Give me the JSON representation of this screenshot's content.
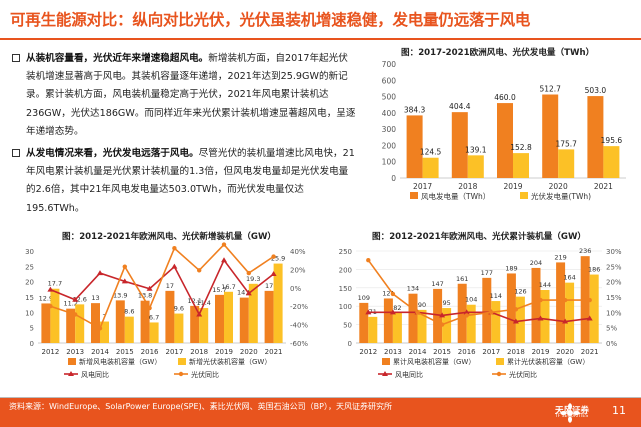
{
  "slide": {
    "title": "可再生能源对比：纵向对比光伏，光伏虽装机增速稳健，发电量仍远落于风电",
    "para1_head": "从装机容量看，光伏近年来增速稳超风电。",
    "para1_body": "新增装机方面，自2017年起光伏装机增速显著高于风电。其装机容量逐年递增，2021年达到25.9GW的新记录。累计装机方面，风电装机量稳定高于光伏，2021年风电累计装机达236GW，光伏达186GW。而同样近年来光伏累计装机增速显著超风电，呈逐年递增态势。",
    "para2_head": "从发电情况来看，光伏发电远落于风电。",
    "para2_body": "尽管光伏的装机量增速比风电快，21年风电累计装机量是光伏累计装机量的1.3倍，但风电发电量却是光伏发电量的2.6倍，其中21年风电发电量达503.0TWh，而光伏发电量仅达195.6TWh。",
    "source": "资料来源：WindEurope、SolarPower Europe(SPE)、素比光伏网、英国石油公司（BP），天风证券研究所",
    "logo_text": "天风证券",
    "logo_sub": "TF SECURITIES",
    "page_number": "11",
    "colors": {
      "accent": "#e8541e",
      "wind": "#f08020",
      "solar": "#fcc126",
      "wind_line": "#c8262b"
    }
  },
  "chart_data": [
    {
      "type": "bar",
      "title": "图：2017-2021欧洲风电、光伏发电量（TWh）",
      "categories": [
        "2017",
        "2018",
        "2019",
        "2020",
        "2021"
      ],
      "series": [
        {
          "name": "风电发电量（TWh）",
          "values": [
            384.3,
            404.4,
            460.0,
            512.7,
            503.0
          ]
        },
        {
          "name": "光伏发电量(TWh)",
          "values": [
            124.5,
            139.1,
            152.8,
            175.7,
            195.6
          ]
        }
      ],
      "ylim": [
        0,
        700
      ],
      "yticks": [
        "0",
        "100",
        "200",
        "300",
        "400",
        "500",
        "600",
        "700"
      ],
      "legend": "bottom"
    },
    {
      "type": "bar",
      "title": "图：2012-2021年欧洲风电、光伏新增装机量（GW）",
      "categories": [
        "2012",
        "2013",
        "2014",
        "2015",
        "2016",
        "2017",
        "2018",
        "2019",
        "2020",
        "2021"
      ],
      "series": [
        {
          "name": "新增风电装机容量（GW）",
          "values": [
            12.9,
            11.2,
            13.0,
            13.9,
            13.8,
            17.0,
            12.1,
            15.7,
            14.8,
            17.0
          ]
        },
        {
          "name": "新增光伏装机容量（GW）",
          "values": [
            17.7,
            12.6,
            7.0,
            8.6,
            6.7,
            9.6,
            11.4,
            16.7,
            19.3,
            25.9
          ]
        }
      ],
      "line_series": [
        {
          "name": "风电同比",
          "values": [
            -2,
            -13,
            16,
            7,
            -1,
            23,
            -29,
            30,
            -6,
            15
          ]
        },
        {
          "name": "光伏同比",
          "values": [
            -20,
            -29,
            -44,
            23,
            -22,
            43,
            19,
            47,
            16,
            34
          ]
        }
      ],
      "ylim_left": [
        0,
        30
      ],
      "ylim_right": [
        -60,
        40
      ],
      "yticks_left": [
        "0",
        "5",
        "10",
        "15",
        "20",
        "25",
        "30"
      ],
      "yticks_right": [
        "-60%",
        "-40%",
        "-20%",
        "0%",
        "20%",
        "40%"
      ],
      "legend": "bottom"
    },
    {
      "type": "bar",
      "title": "图：2012-2021年欧洲风电、光伏累计装机量（GW）",
      "categories": [
        "2012",
        "2013",
        "2014",
        "2015",
        "2016",
        "2017",
        "2018",
        "2019",
        "2020",
        "2021"
      ],
      "series": [
        {
          "name": "累计风电装机容量（GW）",
          "values": [
            109,
            121,
            134,
            147,
            161,
            177,
            189,
            204,
            219,
            236
          ]
        },
        {
          "name": "累计光伏装机容量（GW）",
          "values": [
            71,
            82,
            90,
            95,
            104,
            114,
            126,
            144,
            164,
            186
          ]
        }
      ],
      "line_series": [
        {
          "name": "风电同比",
          "values": [
            10,
            10,
            10,
            9,
            10,
            10,
            7,
            8,
            7,
            8
          ]
        },
        {
          "name": "光伏同比",
          "values": [
            27,
            16,
            10,
            6,
            9,
            10,
            11,
            14,
            14,
            14
          ]
        }
      ],
      "ylim_left": [
        0,
        250
      ],
      "ylim_right": [
        0,
        30
      ],
      "yticks_left": [
        "0",
        "50",
        "100",
        "150",
        "200",
        "250"
      ],
      "yticks_right": [
        "0%",
        "5%",
        "10%",
        "15%",
        "20%",
        "25%",
        "30%"
      ],
      "legend": "bottom"
    }
  ]
}
